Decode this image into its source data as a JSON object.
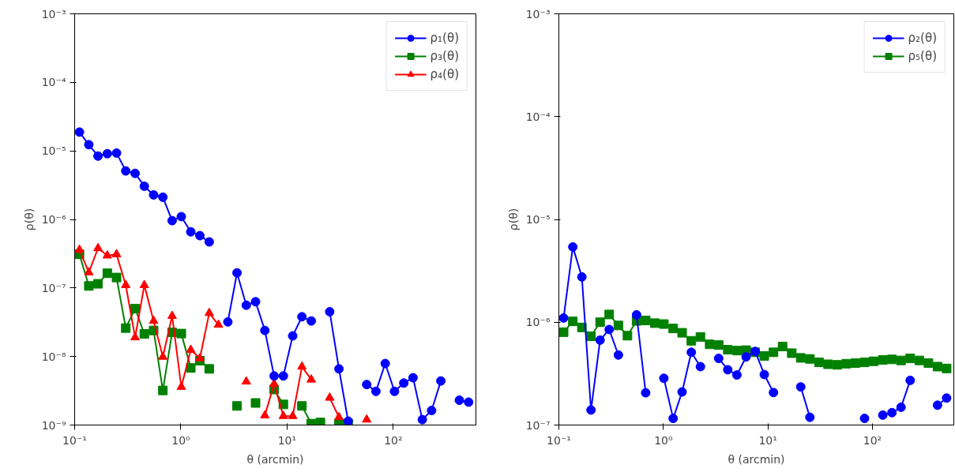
{
  "chart_data": [
    {
      "type": "line",
      "xlabel": "θ (arcmin)",
      "ylabel": "ρ(θ)",
      "log": "xy",
      "grid": false,
      "legend": "top right",
      "xlim": [
        0.1,
        600
      ],
      "ylim": [
        1e-09,
        0.001
      ],
      "xticks": [
        {
          "value": 0.1,
          "label": "10⁻¹"
        },
        {
          "value": 1,
          "label": "10⁰"
        },
        {
          "value": 10,
          "label": "10¹"
        },
        {
          "value": 100,
          "label": "10²"
        }
      ],
      "yticks": [
        {
          "value": 1e-09,
          "label": "10⁻⁹"
        },
        {
          "value": 1e-08,
          "label": "10⁻⁸"
        },
        {
          "value": 1e-07,
          "label": "10⁻⁷"
        },
        {
          "value": 1e-06,
          "label": "10⁻⁶"
        },
        {
          "value": 1e-05,
          "label": "10⁻⁵"
        },
        {
          "value": 0.0001,
          "label": "10⁻⁴"
        },
        {
          "value": 0.001,
          "label": "10⁻³"
        }
      ],
      "x": [
        0.111,
        0.136,
        0.166,
        0.203,
        0.248,
        0.303,
        0.371,
        0.453,
        0.554,
        0.677,
        0.828,
        1.01,
        1.24,
        1.51,
        1.85,
        2.26,
        2.77,
        3.38,
        4.13,
        5.05,
        6.18,
        7.55,
        9.23,
        11.3,
        13.8,
        16.9,
        20.6,
        25.2,
        30.8,
        37.6,
        46.0,
        56.2,
        68.7,
        84.0,
        102.7,
        125.6,
        153.5,
        187.7,
        229.5,
        280.6,
        343,
        419,
        512
      ],
      "series": [
        {
          "name": "ρ₁(θ)",
          "color": "#0000ff",
          "marker": "circle",
          "values": [
            1.88e-05,
            1.23e-05,
            8.4e-06,
            9.1e-06,
            9.3e-06,
            5.1e-06,
            4.7e-06,
            3.05e-06,
            2.28e-06,
            2.11e-06,
            9.6e-07,
            1.1e-06,
            6.6e-07,
            5.8e-07,
            4.7e-07,
            null,
            3.2e-08,
            1.66e-07,
            5.6e-08,
            6.3e-08,
            2.4e-08,
            5.2e-09,
            5.2e-09,
            2e-08,
            3.8e-08,
            3.3e-08,
            null,
            4.5e-08,
            6.6e-09,
            1.14e-09,
            null,
            3.9e-09,
            3.1e-09,
            7.9e-09,
            3.1e-09,
            4.1e-09,
            4.9e-09,
            1.2e-09,
            1.63e-09,
            4.4e-09,
            null,
            2.3e-09,
            2.16e-09
          ]
        },
        {
          "name": "ρ₃(θ)",
          "color": "#008000",
          "marker": "square",
          "values": [
            3.1e-07,
            1.07e-07,
            1.15e-07,
            1.64e-07,
            1.42e-07,
            2.6e-08,
            5e-08,
            2.14e-08,
            2.4e-08,
            3.2e-09,
            2.25e-08,
            2.16e-08,
            6.8e-09,
            8.7e-09,
            6.6e-09,
            null,
            null,
            1.9e-09,
            null,
            2.1e-09,
            null,
            3.3e-09,
            2e-09,
            null,
            1.9e-09,
            1.05e-09,
            1.09e-09,
            null,
            1.05e-09,
            1.05e-09,
            null,
            null,
            null,
            null,
            null,
            null,
            null,
            null,
            null,
            null,
            null,
            null,
            null
          ]
        },
        {
          "name": "ρ₄(θ)",
          "color": "#ff0000",
          "marker": "triangle",
          "values": [
            3.6e-07,
            1.69e-07,
            3.8e-07,
            2.97e-07,
            3.1e-07,
            1.1e-07,
            1.9e-08,
            1.1e-07,
            3.3e-08,
            9.9e-09,
            3.9e-08,
            3.6e-09,
            1.25e-08,
            9.4e-09,
            4.3e-08,
            2.9e-08,
            null,
            null,
            4.3e-09,
            null,
            1.38e-09,
            4e-09,
            1.35e-09,
            1.35e-09,
            7.1e-09,
            4.6e-09,
            null,
            2.5e-09,
            1.3e-09,
            null,
            null,
            1.2e-09,
            null,
            null,
            null,
            null,
            null,
            null,
            null,
            null,
            null,
            null,
            null
          ]
        }
      ]
    },
    {
      "type": "line",
      "xlabel": "θ (arcmin)",
      "ylabel": "ρ(θ)",
      "log": "xy",
      "grid": false,
      "legend": "top right",
      "xlim": [
        0.1,
        600
      ],
      "ylim": [
        1e-07,
        0.001
      ],
      "xticks": [
        {
          "value": 0.1,
          "label": "10⁻¹"
        },
        {
          "value": 1,
          "label": "10⁰"
        },
        {
          "value": 10,
          "label": "10¹"
        },
        {
          "value": 100,
          "label": "10²"
        }
      ],
      "yticks": [
        {
          "value": 1e-07,
          "label": "10⁻⁷"
        },
        {
          "value": 1e-06,
          "label": "10⁻⁶"
        },
        {
          "value": 1e-05,
          "label": "10⁻⁵"
        },
        {
          "value": 0.0001,
          "label": "10⁻⁴"
        },
        {
          "value": 0.001,
          "label": "10⁻³"
        }
      ],
      "x": [
        0.111,
        0.136,
        0.166,
        0.203,
        0.248,
        0.303,
        0.371,
        0.453,
        0.554,
        0.677,
        0.828,
        1.01,
        1.24,
        1.51,
        1.85,
        2.26,
        2.77,
        3.38,
        4.13,
        5.05,
        6.18,
        7.55,
        9.23,
        11.3,
        13.8,
        16.9,
        20.6,
        25.2,
        30.8,
        37.6,
        46.0,
        56.2,
        68.7,
        84.0,
        102.7,
        125.6,
        153.5,
        187.7,
        229.5,
        280.6,
        343,
        419,
        512
      ],
      "series": [
        {
          "name": "ρ₂(θ)",
          "color": "#0000ff",
          "marker": "circle",
          "values": [
            1.1e-06,
            5.4e-06,
            2.76e-06,
            1.4e-07,
            6.7e-07,
            8.5e-07,
            4.8e-07,
            null,
            1.18e-06,
            2.06e-07,
            null,
            2.85e-07,
            1.16e-07,
            2.1e-07,
            5.1e-07,
            3.7e-07,
            null,
            4.45e-07,
            3.45e-07,
            3.07e-07,
            4.6e-07,
            5.2e-07,
            3.1e-07,
            2.07e-07,
            null,
            null,
            2.35e-07,
            1.19e-07,
            null,
            null,
            null,
            null,
            null,
            1.16e-07,
            null,
            1.25e-07,
            1.32e-07,
            1.49e-07,
            2.72e-07,
            null,
            null,
            1.56e-07,
            1.83e-07
          ]
        },
        {
          "name": "ρ₅(θ)",
          "color": "#008000",
          "marker": "square",
          "values": [
            8e-07,
            1.02e-06,
            8.9e-07,
            7.3e-07,
            1e-06,
            1.19e-06,
            9.3e-07,
            7.4e-07,
            1.03e-06,
            1.04e-06,
            9.8e-07,
            9.6e-07,
            8.7e-07,
            7.9e-07,
            6.6e-07,
            7.2e-07,
            6.1e-07,
            6e-07,
            5.4e-07,
            5.3e-07,
            5.35e-07,
            5.1e-07,
            4.7e-07,
            5.1e-07,
            5.8e-07,
            5e-07,
            4.5e-07,
            4.4e-07,
            4.07e-07,
            3.9e-07,
            3.85e-07,
            3.95e-07,
            4e-07,
            4.07e-07,
            4.17e-07,
            4.3e-07,
            4.35e-07,
            4.25e-07,
            4.45e-07,
            4.25e-07,
            4e-07,
            3.7e-07,
            3.55e-07
          ]
        }
      ]
    }
  ]
}
